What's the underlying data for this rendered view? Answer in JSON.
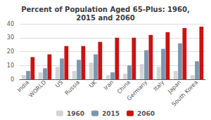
{
  "chart_data": {
    "type": "bar",
    "title": "Percent of Population Aged 65-Plus: 1960,\n2015 and 2060",
    "categories": [
      "India",
      "WORLD",
      "US",
      "Russia",
      "UK",
      "Iran",
      "China",
      "Germany",
      "Italy",
      "Japan",
      "South Korea"
    ],
    "series": [
      {
        "name": "1960",
        "color": "#d3d3d3",
        "values": [
          3,
          5,
          9,
          6,
          12,
          3,
          4,
          11,
          9,
          6,
          3
        ]
      },
      {
        "name": "2015",
        "color": "#7898b0",
        "values": [
          6,
          8,
          15,
          14,
          18,
          5,
          10,
          21,
          22,
          26,
          13
        ]
      },
      {
        "name": "2060",
        "color": "#cc1111",
        "values": [
          16,
          18,
          24,
          24,
          27,
          30,
          30,
          32,
          34,
          37,
          38
        ]
      }
    ],
    "ylim": [
      0,
      40
    ],
    "yticks": [
      0,
      10,
      20,
      30,
      40
    ],
    "grid": true,
    "legend": "bottom"
  }
}
